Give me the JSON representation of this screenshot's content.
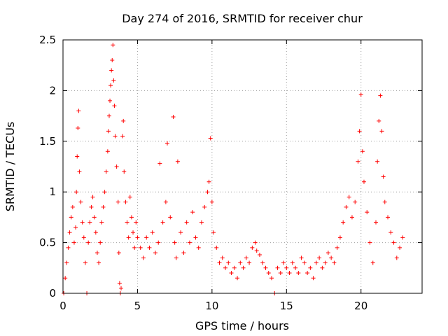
{
  "chart_data": {
    "type": "scatter",
    "title": "Day 274 of 2016, SRMTID for receiver chur",
    "xlabel": "GPS time / hours",
    "ylabel": "SRMTID / TECUs",
    "xlim": [
      0,
      24.1
    ],
    "ylim": [
      0,
      2.5
    ],
    "xticks": [
      0,
      5,
      10,
      15,
      20
    ],
    "xtick_labels": [
      "0",
      "5",
      "10",
      "15",
      "20"
    ],
    "yticks": [
      0,
      0.5,
      1,
      1.5,
      2,
      2.5
    ],
    "ytick_labels": [
      "0",
      "0.5",
      "1",
      "1.5",
      "2",
      "2.5"
    ],
    "grid": true,
    "marker": "+",
    "color": "#ff0000",
    "series": [
      {
        "name": "SRMTID",
        "points": [
          [
            0.05,
            0.0
          ],
          [
            0.15,
            0.15
          ],
          [
            0.25,
            0.3
          ],
          [
            0.35,
            0.45
          ],
          [
            0.45,
            0.6
          ],
          [
            0.55,
            0.75
          ],
          [
            0.65,
            0.85
          ],
          [
            0.75,
            0.5
          ],
          [
            0.85,
            0.65
          ],
          [
            0.9,
            1.0
          ],
          [
            0.95,
            1.35
          ],
          [
            1.0,
            1.63
          ],
          [
            1.05,
            1.8
          ],
          [
            1.1,
            1.2
          ],
          [
            1.2,
            0.9
          ],
          [
            1.3,
            0.7
          ],
          [
            1.4,
            0.55
          ],
          [
            1.5,
            0.3
          ],
          [
            1.6,
            0.0
          ],
          [
            1.7,
            0.5
          ],
          [
            1.8,
            0.7
          ],
          [
            1.9,
            0.85
          ],
          [
            2.0,
            0.95
          ],
          [
            2.1,
            0.75
          ],
          [
            2.2,
            0.6
          ],
          [
            2.3,
            0.4
          ],
          [
            2.4,
            0.3
          ],
          [
            2.5,
            0.5
          ],
          [
            2.6,
            0.7
          ],
          [
            2.7,
            0.85
          ],
          [
            2.8,
            1.0
          ],
          [
            2.9,
            1.2
          ],
          [
            3.0,
            1.4
          ],
          [
            3.05,
            1.6
          ],
          [
            3.1,
            1.75
          ],
          [
            3.15,
            1.9
          ],
          [
            3.2,
            2.05
          ],
          [
            3.25,
            2.2
          ],
          [
            3.3,
            2.3
          ],
          [
            3.35,
            2.45
          ],
          [
            3.4,
            2.1
          ],
          [
            3.45,
            1.85
          ],
          [
            3.5,
            1.55
          ],
          [
            3.6,
            1.25
          ],
          [
            3.7,
            0.9
          ],
          [
            3.75,
            0.4
          ],
          [
            3.8,
            0.1
          ],
          [
            3.85,
            0.0
          ],
          [
            3.9,
            0.05
          ],
          [
            4.0,
            1.55
          ],
          [
            4.05,
            1.7
          ],
          [
            4.1,
            1.2
          ],
          [
            4.2,
            0.9
          ],
          [
            4.3,
            0.7
          ],
          [
            4.4,
            0.55
          ],
          [
            4.5,
            0.95
          ],
          [
            4.6,
            0.75
          ],
          [
            4.7,
            0.6
          ],
          [
            4.8,
            0.45
          ],
          [
            4.9,
            0.7
          ],
          [
            5.0,
            0.55
          ],
          [
            5.2,
            0.45
          ],
          [
            5.4,
            0.35
          ],
          [
            5.6,
            0.55
          ],
          [
            5.8,
            0.45
          ],
          [
            6.0,
            0.6
          ],
          [
            6.2,
            0.4
          ],
          [
            6.4,
            0.5
          ],
          [
            6.5,
            1.28
          ],
          [
            6.7,
            0.7
          ],
          [
            6.9,
            0.9
          ],
          [
            7.0,
            1.48
          ],
          [
            7.2,
            0.75
          ],
          [
            7.4,
            1.74
          ],
          [
            7.5,
            0.5
          ],
          [
            7.6,
            0.35
          ],
          [
            7.7,
            1.3
          ],
          [
            7.9,
            0.6
          ],
          [
            8.1,
            0.4
          ],
          [
            8.3,
            0.7
          ],
          [
            8.5,
            0.5
          ],
          [
            8.7,
            0.8
          ],
          [
            8.9,
            0.55
          ],
          [
            9.1,
            0.45
          ],
          [
            9.3,
            0.7
          ],
          [
            9.5,
            0.85
          ],
          [
            9.7,
            1.0
          ],
          [
            9.8,
            1.1
          ],
          [
            9.9,
            1.53
          ],
          [
            10.0,
            0.9
          ],
          [
            10.1,
            0.6
          ],
          [
            10.3,
            0.45
          ],
          [
            10.5,
            0.3
          ],
          [
            10.7,
            0.35
          ],
          [
            10.9,
            0.25
          ],
          [
            11.1,
            0.3
          ],
          [
            11.3,
            0.2
          ],
          [
            11.5,
            0.25
          ],
          [
            11.7,
            0.15
          ],
          [
            11.9,
            0.3
          ],
          [
            12.1,
            0.25
          ],
          [
            12.3,
            0.35
          ],
          [
            12.5,
            0.3
          ],
          [
            12.7,
            0.45
          ],
          [
            12.9,
            0.5
          ],
          [
            13.0,
            0.42
          ],
          [
            13.2,
            0.38
          ],
          [
            13.4,
            0.3
          ],
          [
            13.6,
            0.25
          ],
          [
            13.8,
            0.2
          ],
          [
            14.0,
            0.15
          ],
          [
            14.2,
            0.0
          ],
          [
            14.4,
            0.25
          ],
          [
            14.6,
            0.2
          ],
          [
            14.8,
            0.3
          ],
          [
            15.0,
            0.25
          ],
          [
            15.2,
            0.2
          ],
          [
            15.4,
            0.3
          ],
          [
            15.6,
            0.25
          ],
          [
            15.8,
            0.2
          ],
          [
            16.0,
            0.35
          ],
          [
            16.2,
            0.3
          ],
          [
            16.4,
            0.2
          ],
          [
            16.6,
            0.25
          ],
          [
            16.8,
            0.15
          ],
          [
            17.0,
            0.3
          ],
          [
            17.2,
            0.35
          ],
          [
            17.4,
            0.25
          ],
          [
            17.6,
            0.3
          ],
          [
            17.8,
            0.4
          ],
          [
            18.0,
            0.35
          ],
          [
            18.2,
            0.3
          ],
          [
            18.4,
            0.45
          ],
          [
            18.6,
            0.55
          ],
          [
            18.8,
            0.7
          ],
          [
            19.0,
            0.85
          ],
          [
            19.2,
            0.95
          ],
          [
            19.4,
            0.75
          ],
          [
            19.6,
            0.9
          ],
          [
            19.8,
            1.3
          ],
          [
            19.9,
            1.6
          ],
          [
            20.0,
            1.96
          ],
          [
            20.1,
            1.4
          ],
          [
            20.2,
            1.1
          ],
          [
            20.4,
            0.8
          ],
          [
            20.6,
            0.5
          ],
          [
            20.8,
            0.3
          ],
          [
            21.0,
            0.7
          ],
          [
            21.1,
            1.3
          ],
          [
            21.2,
            1.7
          ],
          [
            21.3,
            1.95
          ],
          [
            21.4,
            1.6
          ],
          [
            21.5,
            1.15
          ],
          [
            21.6,
            0.9
          ],
          [
            21.8,
            0.75
          ],
          [
            22.0,
            0.6
          ],
          [
            22.2,
            0.5
          ],
          [
            22.4,
            0.35
          ],
          [
            22.6,
            0.45
          ],
          [
            22.8,
            0.55
          ]
        ]
      }
    ]
  }
}
